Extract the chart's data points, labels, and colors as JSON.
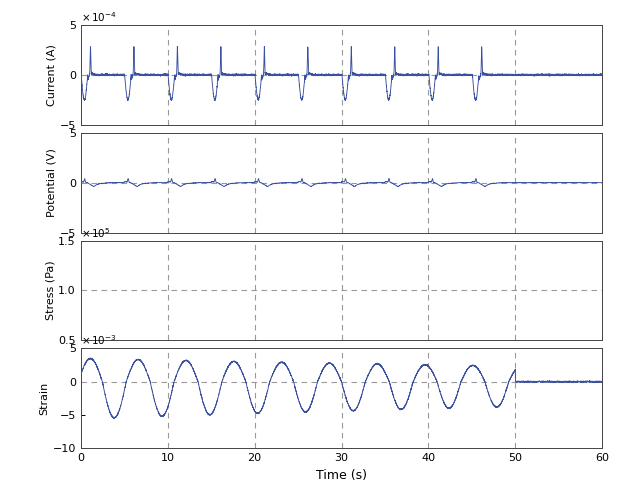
{
  "title": "",
  "xlabel": "Time (s)",
  "xlim": [
    0,
    60
  ],
  "xticks": [
    0,
    10,
    20,
    30,
    40,
    50,
    60
  ],
  "dashed_vlines": [
    10,
    20,
    30,
    40,
    50
  ],
  "panels": [
    {
      "ylabel": "Current (A)",
      "scale_label": "-4",
      "scale_exp": -4,
      "ylim": [
        -5,
        5
      ],
      "yticks": [
        -5,
        0,
        5
      ],
      "hline": 0,
      "type": "current"
    },
    {
      "ylabel": "Potential (V)",
      "scale_label": "",
      "scale_exp": 1,
      "ylim": [
        -5,
        5
      ],
      "yticks": [
        -5,
        0,
        5
      ],
      "hline": 0,
      "type": "potential"
    },
    {
      "ylabel": "Stress (Pa)",
      "scale_label": "5",
      "scale_exp": 5,
      "ylim": [
        0.5,
        1.5
      ],
      "yticks": [
        0.5,
        1.0,
        1.5
      ],
      "hline": 1.0,
      "type": "stress"
    },
    {
      "ylabel": "Strain",
      "scale_label": "-3",
      "scale_exp": -3,
      "ylim": [
        -10,
        5
      ],
      "yticks": [
        -10,
        -5,
        0,
        5
      ],
      "hline": 0,
      "type": "strain"
    }
  ],
  "line_color": "#3a50a0",
  "dashed_color": "#999999",
  "background_color": "#ffffff"
}
